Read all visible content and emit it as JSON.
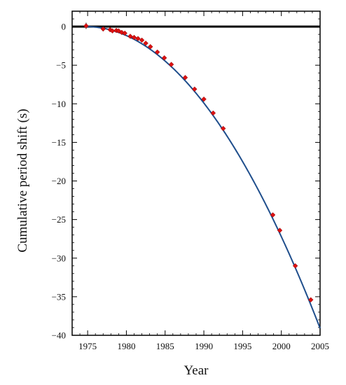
{
  "chart_data": {
    "type": "scatter",
    "title": "",
    "xlabel": "Year",
    "ylabel": "Cumulative period shift (s)",
    "xlim": [
      1973,
      2005
    ],
    "ylim": [
      -40,
      2
    ],
    "xticks": [
      1975,
      1980,
      1985,
      1990,
      1995,
      2000,
      2005
    ],
    "yticks": [
      0,
      -5,
      -10,
      -15,
      -20,
      -25,
      -30,
      -35,
      -40
    ],
    "grid": false,
    "legend": "none",
    "zero_line": true,
    "series": [
      {
        "kind": "points",
        "color": "#dd1111",
        "points": [
          {
            "x": 1974.8,
            "y": 0.1,
            "err": 0.4
          },
          {
            "x": 1977.0,
            "y": -0.3,
            "err": 0.3
          },
          {
            "x": 1977.9,
            "y": -0.4,
            "err": 0.2
          },
          {
            "x": 1978.2,
            "y": -0.55,
            "err": 0.2
          },
          {
            "x": 1978.7,
            "y": -0.5,
            "err": 0.2
          },
          {
            "x": 1979.0,
            "y": -0.55,
            "err": 0.2
          },
          {
            "x": 1979.4,
            "y": -0.75,
            "err": 0.2
          },
          {
            "x": 1979.8,
            "y": -0.85,
            "err": 0.2
          },
          {
            "x": 1980.5,
            "y": -1.25,
            "err": 0.15
          },
          {
            "x": 1981.0,
            "y": -1.4,
            "err": 0.15
          },
          {
            "x": 1981.5,
            "y": -1.55,
            "err": 0.15
          },
          {
            "x": 1982.0,
            "y": -1.75,
            "err": 0.15
          },
          {
            "x": 1982.5,
            "y": -2.15,
            "err": 0.15
          },
          {
            "x": 1983.1,
            "y": -2.6,
            "err": 0.15
          },
          {
            "x": 1984.0,
            "y": -3.3,
            "err": 0.15
          },
          {
            "x": 1984.9,
            "y": -4.05,
            "err": 0.15
          },
          {
            "x": 1985.8,
            "y": -4.9,
            "err": 0.15
          },
          {
            "x": 1987.6,
            "y": -6.6,
            "err": 0.15
          },
          {
            "x": 1988.8,
            "y": -8.1,
            "err": 0.2
          },
          {
            "x": 1990.0,
            "y": -9.4,
            "err": 0.2
          },
          {
            "x": 1991.2,
            "y": -11.2,
            "err": 0.2
          },
          {
            "x": 1992.5,
            "y": -13.2,
            "err": 0.2
          },
          {
            "x": 1998.9,
            "y": -24.4,
            "err": 0.2
          },
          {
            "x": 1999.8,
            "y": -26.4,
            "err": 0.2
          },
          {
            "x": 2001.8,
            "y": -31.0,
            "err": 0.2
          },
          {
            "x": 2003.8,
            "y": -35.4,
            "err": 0.2
          }
        ]
      },
      {
        "kind": "curve",
        "color": "#1f4e8c",
        "x_start": 1974.8,
        "x_end": 2005,
        "model": "parabola",
        "curvature": 0.04286
      }
    ]
  }
}
